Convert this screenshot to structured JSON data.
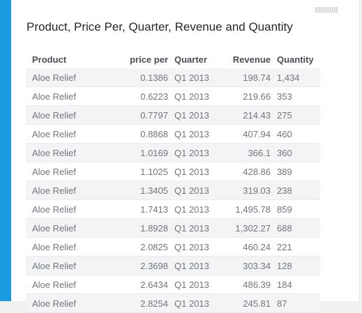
{
  "title": "Product, Price Per, Quarter, Revenue and Quantity",
  "columns": [
    "Product",
    "price per",
    "Quarter",
    "Revenue",
    "Quantity"
  ],
  "rows": [
    [
      "Aloe Relief",
      "0.1386",
      "Q1 2013",
      "198.74",
      "1,434"
    ],
    [
      "Aloe Relief",
      "0.6223",
      "Q1 2013",
      "219.66",
      "353"
    ],
    [
      "Aloe Relief",
      "0.7797",
      "Q1 2013",
      "214.43",
      "275"
    ],
    [
      "Aloe Relief",
      "0.8868",
      "Q1 2013",
      "407.94",
      "460"
    ],
    [
      "Aloe Relief",
      "1.0169",
      "Q1 2013",
      "366.1",
      "360"
    ],
    [
      "Aloe Relief",
      "1.1025",
      "Q1 2013",
      "428.86",
      "389"
    ],
    [
      "Aloe Relief",
      "1.3405",
      "Q1 2013",
      "319.03",
      "238"
    ],
    [
      "Aloe Relief",
      "1.7413",
      "Q1 2013",
      "1,495.78",
      "859"
    ],
    [
      "Aloe Relief",
      "1.8928",
      "Q1 2013",
      "1,302.27",
      "688"
    ],
    [
      "Aloe Relief",
      "2.0825",
      "Q1 2013",
      "460.24",
      "221"
    ],
    [
      "Aloe Relief",
      "2.3698",
      "Q1 2013",
      "303.34",
      "128"
    ],
    [
      "Aloe Relief",
      "2.6434",
      "Q1 2013",
      "486.39",
      "184"
    ],
    [
      "Aloe Relief",
      "2.8254",
      "Q1 2013",
      "245.81",
      "87"
    ]
  ]
}
